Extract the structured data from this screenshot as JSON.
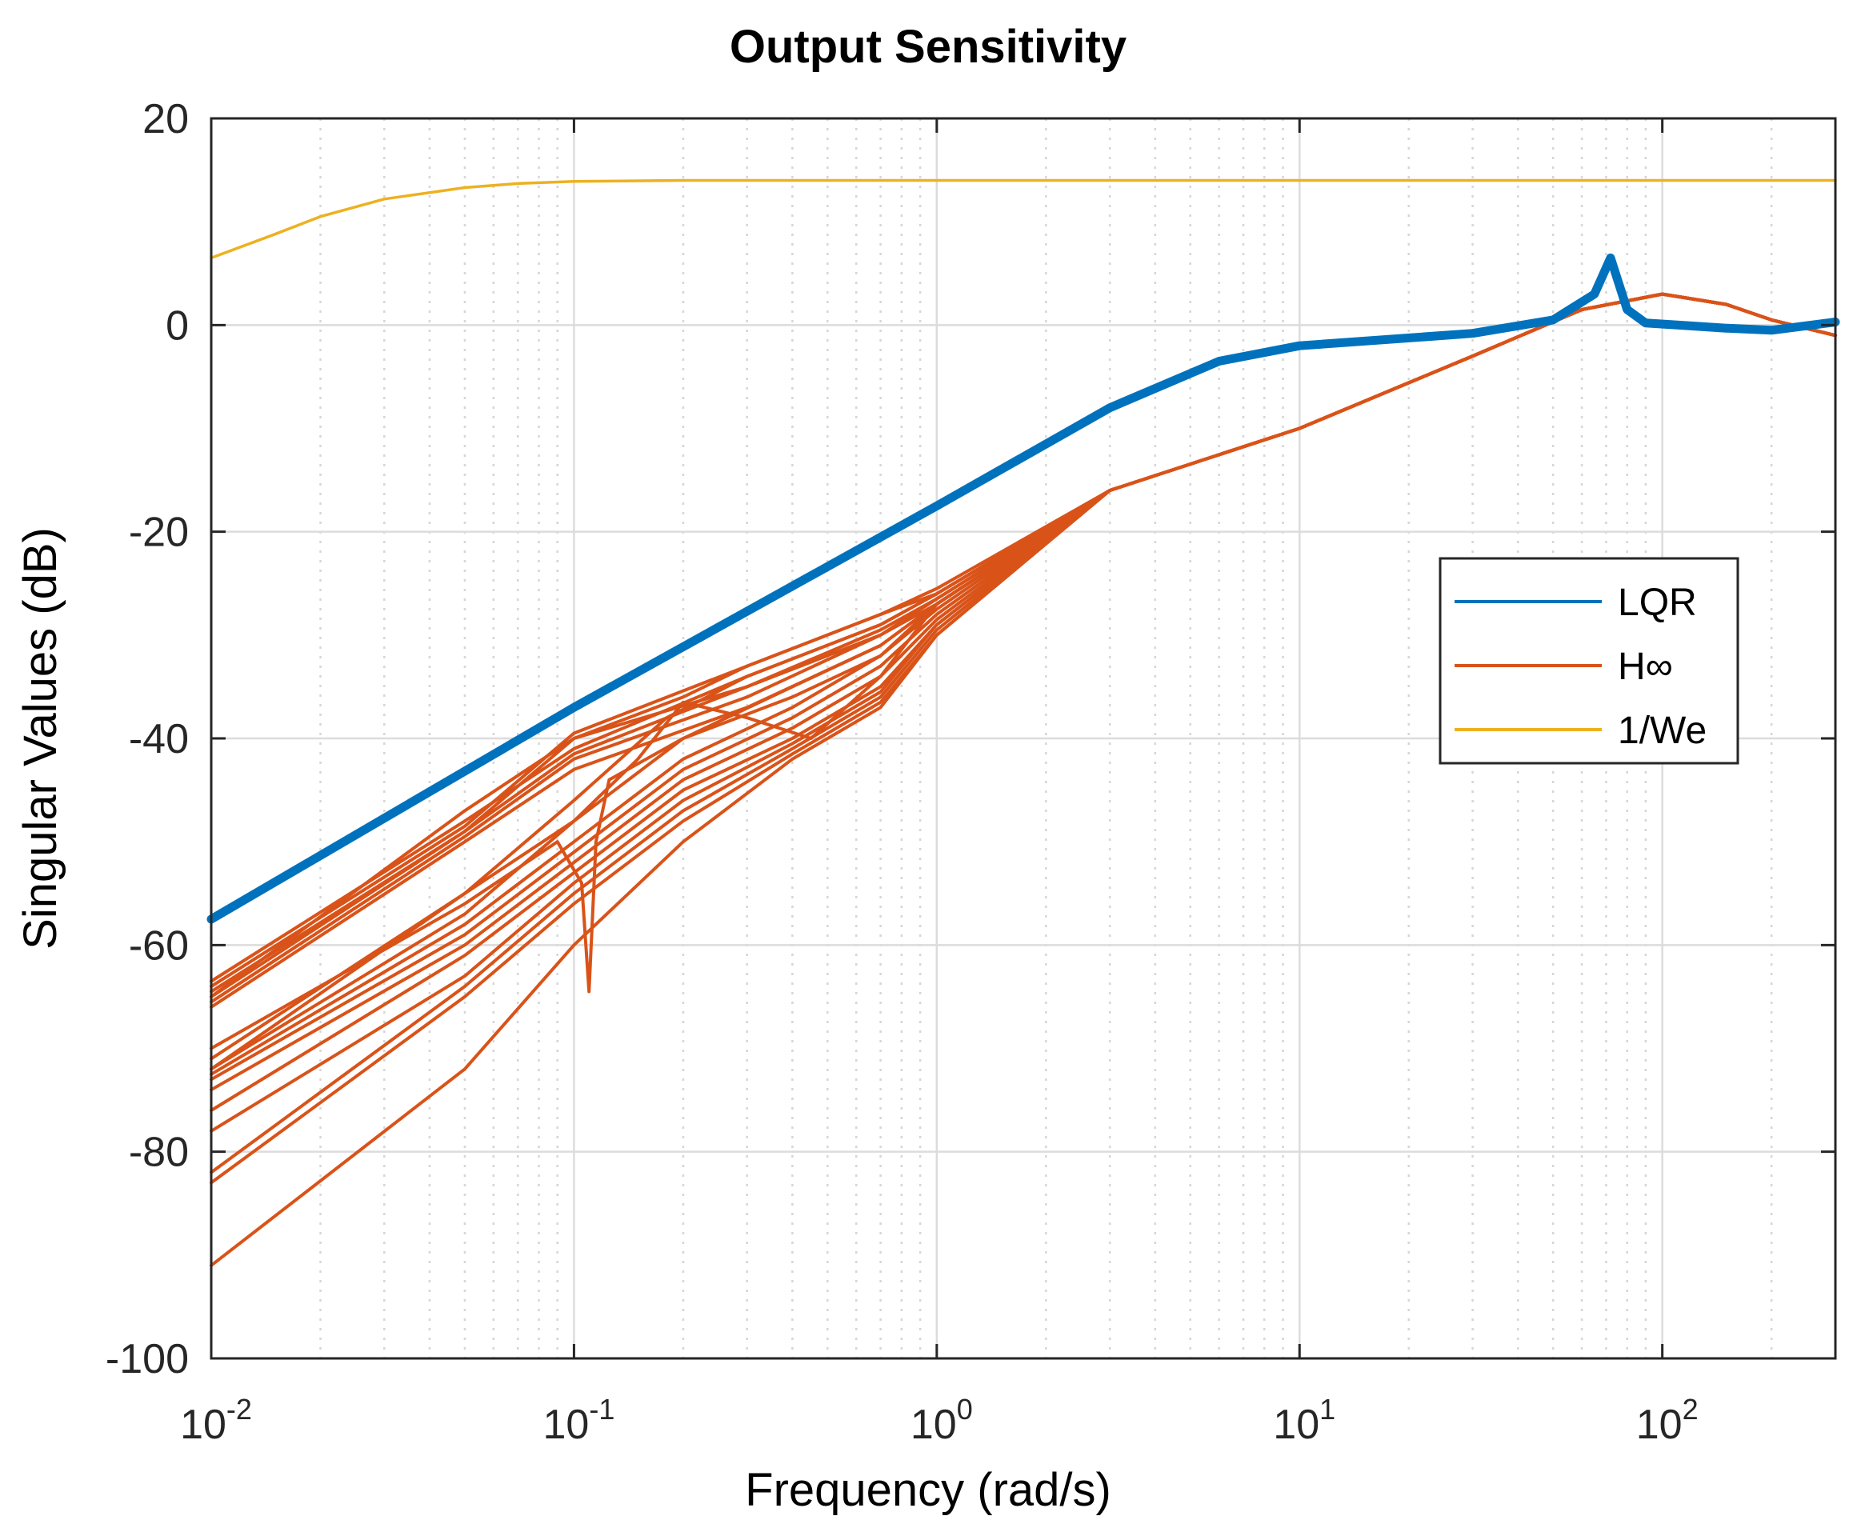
{
  "chart_data": {
    "type": "line",
    "title": "Output Sensitivity",
    "xlabel": "Frequency (rad/s)",
    "ylabel": "Singular Values (dB)",
    "xscale": "log",
    "xlim": [
      0.01,
      300
    ],
    "ylim": [
      -100,
      20
    ],
    "grid": true,
    "minor_grid_x": true,
    "x_ticks": [
      {
        "value": 0.01,
        "base": "10",
        "exp": "-2"
      },
      {
        "value": 0.1,
        "base": "10",
        "exp": "-1"
      },
      {
        "value": 1,
        "base": "10",
        "exp": "0"
      },
      {
        "value": 10,
        "base": "10",
        "exp": "1"
      },
      {
        "value": 100,
        "base": "10",
        "exp": "2"
      }
    ],
    "y_ticks": [
      20,
      0,
      -20,
      -40,
      -60,
      -80,
      -100
    ],
    "legend": {
      "position": "right",
      "entries": [
        {
          "label": "LQR",
          "color": "#0072BD"
        },
        {
          "label": "H∞",
          "color": "#D95319"
        },
        {
          "label": "1/We",
          "color": "#EDB120"
        }
      ]
    },
    "series": [
      {
        "name": "LQR",
        "color": "#0072BD",
        "width": 11,
        "curves": [
          {
            "x": [
              0.01,
              0.1,
              1,
              3,
              6,
              10,
              30,
              50,
              65,
              72,
              80,
              90,
              110,
              150,
              200,
              300
            ],
            "y": [
              -57.5,
              -37,
              -17.5,
              -8,
              -3.5,
              -2,
              -0.8,
              0.5,
              3,
              6.5,
              1.5,
              0.2,
              0,
              -0.3,
              -0.5,
              0.3
            ]
          }
        ]
      },
      {
        "name": "H∞",
        "color": "#D95319",
        "width": 4,
        "curves": [
          {
            "x": [
              0.01,
              0.05,
              0.1,
              0.3,
              0.7,
              1,
              3,
              10,
              30,
              60,
              100,
              150,
              200,
              300
            ],
            "y": [
              -63.5,
              -48,
              -41,
              -34,
              -29,
              -26,
              -16,
              -10,
              -3,
              1.5,
              3,
              2,
              0.5,
              -1
            ]
          },
          {
            "x": [
              0.01,
              0.05,
              0.1,
              0.3,
              0.7,
              1,
              3,
              10,
              30,
              60,
              100,
              150,
              200,
              300
            ],
            "y": [
              -64.5,
              -49,
              -40,
              -35,
              -30,
              -26.5,
              -16,
              -10,
              -3,
              1.5,
              3,
              2,
              0.5,
              -1
            ]
          },
          {
            "x": [
              0.01,
              0.05,
              0.1,
              0.3,
              0.7,
              1,
              3,
              10,
              30,
              60,
              100,
              150,
              200,
              300
            ],
            "y": [
              -65.5,
              -49.5,
              -42,
              -36,
              -30,
              -27,
              -16,
              -10,
              -3,
              1.5,
              3,
              2,
              0.5,
              -1
            ]
          },
          {
            "x": [
              0.01,
              0.05,
              0.1,
              0.3,
              0.7,
              1,
              3,
              10,
              30,
              60,
              100,
              150,
              200,
              300
            ],
            "y": [
              -66,
              -50,
              -43,
              -37,
              -31,
              -27,
              -16,
              -10,
              -3,
              1.5,
              3,
              2,
              0.5,
              -1
            ]
          },
          {
            "x": [
              0.01,
              0.05,
              0.1,
              0.3,
              0.7,
              1,
              3,
              10,
              30,
              60,
              100,
              150,
              200,
              300
            ],
            "y": [
              -64,
              -48.5,
              -39.5,
              -33,
              -28,
              -26,
              -16,
              -10,
              -3,
              1.5,
              3,
              2,
              0.5,
              -1
            ]
          },
          {
            "x": [
              0.01,
              0.05,
              0.1,
              0.3,
              0.7,
              1,
              3,
              10,
              30,
              60,
              100,
              150,
              200,
              300
            ],
            "y": [
              -65,
              -49,
              -41.5,
              -35,
              -29.5,
              -26.5,
              -16,
              -10,
              -3,
              1.5,
              3,
              2,
              0.5,
              -1
            ]
          },
          {
            "x": [
              0.01,
              0.05,
              0.1,
              0.18,
              0.3,
              0.7,
              1,
              3,
              10,
              30,
              60,
              100,
              150,
              200,
              300
            ],
            "y": [
              -71,
              -55,
              -46,
              -38,
              -34,
              -29,
              -26,
              -16,
              -10,
              -3,
              1.5,
              3,
              2,
              0.5,
              -1
            ]
          },
          {
            "x": [
              0.01,
              0.05,
              0.1,
              0.2,
              0.4,
              0.7,
              1,
              3,
              10,
              30,
              60,
              100,
              150,
              200,
              300
            ],
            "y": [
              -72,
              -57,
              -48,
              -40,
              -35,
              -31,
              -27,
              -16,
              -10,
              -3,
              1.5,
              3,
              2,
              0.5,
              -1
            ]
          },
          {
            "x": [
              0.01,
              0.05,
              0.1,
              0.2,
              0.4,
              0.7,
              1,
              3,
              10,
              30,
              60,
              100,
              150,
              200,
              300
            ],
            "y": [
              -72.5,
              -58,
              -50,
              -42,
              -37,
              -32,
              -27.5,
              -16,
              -10,
              -3,
              1.5,
              3,
              2,
              0.5,
              -1
            ]
          },
          {
            "x": [
              0.01,
              0.05,
              0.1,
              0.2,
              0.4,
              0.7,
              1,
              3,
              10,
              30,
              60,
              100,
              150,
              200,
              300
            ],
            "y": [
              -73,
              -59,
              -51,
              -43,
              -38,
              -33,
              -28,
              -16,
              -10,
              -3,
              1.5,
              3,
              2,
              0.5,
              -1
            ]
          },
          {
            "x": [
              0.01,
              0.05,
              0.1,
              0.2,
              0.4,
              0.7,
              1,
              3,
              10,
              30,
              60,
              100,
              150,
              200,
              300
            ],
            "y": [
              -74,
              -60,
              -52,
              -44,
              -39,
              -34,
              -28.5,
              -16,
              -10,
              -3,
              1.5,
              3,
              2,
              0.5,
              -1
            ]
          },
          {
            "x": [
              0.01,
              0.05,
              0.1,
              0.2,
              0.4,
              0.7,
              1,
              3,
              10,
              30,
              60,
              100,
              150,
              200,
              300
            ],
            "y": [
              -76,
              -61,
              -53,
              -45,
              -40,
              -35,
              -29,
              -16,
              -10,
              -3,
              1.5,
              3,
              2,
              0.5,
              -1
            ]
          },
          {
            "x": [
              0.01,
              0.05,
              0.1,
              0.2,
              0.4,
              0.7,
              1,
              3,
              10,
              30,
              60,
              100,
              150,
              200,
              300
            ],
            "y": [
              -78,
              -63,
              -54,
              -46,
              -40.5,
              -35.5,
              -29,
              -16,
              -10,
              -3,
              1.5,
              3,
              2,
              0.5,
              -1
            ]
          },
          {
            "x": [
              0.01,
              0.05,
              0.1,
              0.2,
              0.4,
              0.7,
              1,
              3,
              10,
              30,
              60,
              100,
              150,
              200,
              300
            ],
            "y": [
              -82,
              -64,
              -55,
              -47,
              -41,
              -36,
              -29.5,
              -16,
              -10,
              -3,
              1.5,
              3,
              2,
              0.5,
              -1
            ]
          },
          {
            "x": [
              0.01,
              0.05,
              0.1,
              0.2,
              0.4,
              0.7,
              1,
              3,
              10,
              30,
              60,
              100,
              150,
              200,
              300
            ],
            "y": [
              -83,
              -65,
              -56,
              -48,
              -41.5,
              -36.5,
              -30,
              -16,
              -10,
              -3,
              1.5,
              3,
              2,
              0.5,
              -1
            ]
          },
          {
            "x": [
              0.01,
              0.05,
              0.1,
              0.2,
              0.4,
              0.7,
              1,
              3,
              10,
              30,
              60,
              100,
              150,
              200,
              300
            ],
            "y": [
              -91,
              -72,
              -60,
              -50,
              -42,
              -37,
              -30,
              -16,
              -10,
              -3,
              1.5,
              3,
              2,
              0.5,
              -1
            ]
          },
          {
            "x": [
              0.01,
              0.05,
              0.09,
              0.105,
              0.11,
              0.115,
              0.125,
              0.2,
              0.4,
              0.7,
              1,
              3,
              10,
              30,
              60,
              100,
              150,
              200,
              300
            ],
            "y": [
              -70,
              -56,
              -50,
              -54,
              -64.5,
              -50,
              -44,
              -40,
              -36,
              -32,
              -27,
              -16,
              -10,
              -3,
              1.5,
              3,
              2,
              0.5,
              -1
            ]
          },
          {
            "x": [
              0.01,
              0.05,
              0.1,
              0.15,
              0.2,
              0.3,
              0.45,
              0.7,
              1,
              3,
              10,
              30,
              60,
              100,
              150,
              200,
              300
            ],
            "y": [
              -72,
              -55,
              -48,
              -42,
              -36.5,
              -38,
              -40,
              -34,
              -27,
              -16,
              -10,
              -3,
              1.5,
              3,
              2,
              0.5,
              -1
            ]
          },
          {
            "x": [
              0.01,
              0.05,
              0.1,
              0.2,
              0.3,
              0.5,
              0.7,
              1,
              3,
              10,
              30,
              60,
              100,
              150,
              200,
              300
            ],
            "y": [
              -65,
              -47,
              -40,
              -36,
              -33,
              -30,
              -28,
              -25.5,
              -16,
              -10,
              -3,
              1.5,
              3,
              2,
              0.5,
              -1
            ]
          }
        ]
      },
      {
        "name": "1/We",
        "color": "#EDB120",
        "width": 3.5,
        "curves": [
          {
            "x": [
              0.01,
              0.015,
              0.02,
              0.03,
              0.05,
              0.07,
              0.1,
              0.2,
              0.5,
              1,
              10,
              100,
              300
            ],
            "y": [
              6.5,
              8.8,
              10.5,
              12.2,
              13.3,
              13.7,
              13.9,
              14,
              14,
              14,
              14,
              14,
              14
            ]
          }
        ]
      }
    ]
  }
}
